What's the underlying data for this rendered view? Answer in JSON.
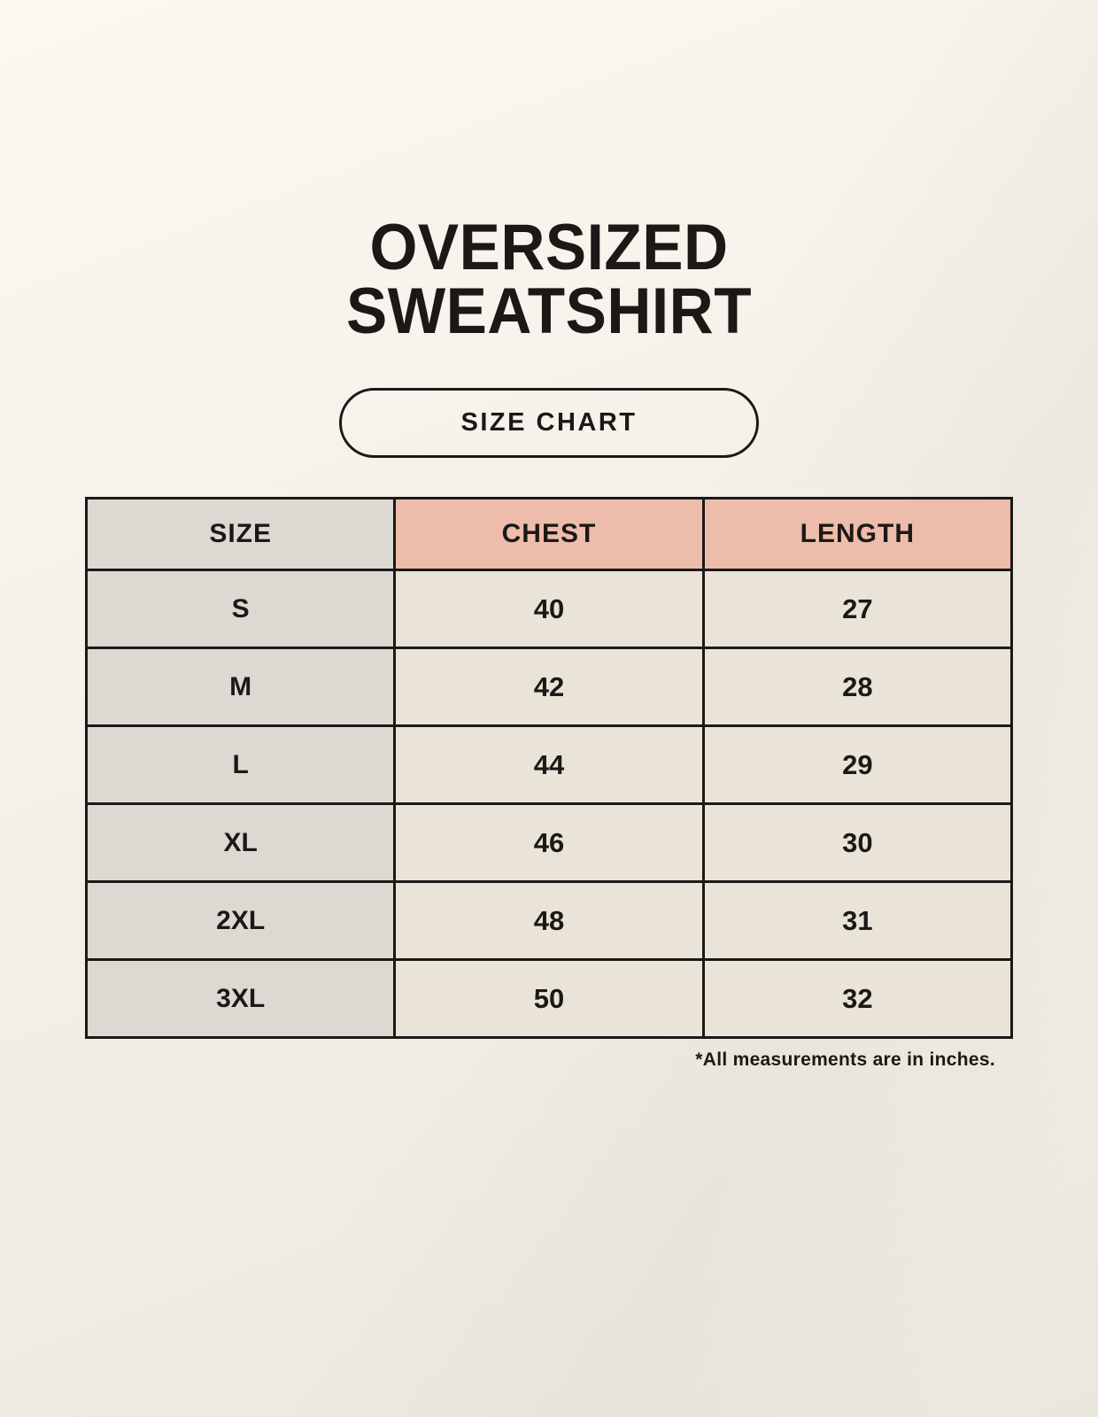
{
  "page": {
    "title_lines": [
      "OVERSIZED",
      "SWEATSHIRT"
    ]
  },
  "colors": {
    "background_top": "#faf8f1",
    "background_bottom": "#ebe7df",
    "text": "#1b1916",
    "table_border": "#1b1916",
    "size_column_bg": "#ded8d2",
    "measure_header_bg": "#edbcab",
    "data_cell_bg": "#e9e3d8"
  },
  "chart_data": {
    "type": "table",
    "title": "OVERSIZED SWEATSHIRT",
    "subtitle": "SIZE CHART",
    "columns": [
      "SIZE",
      "CHEST",
      "LENGTH"
    ],
    "rows": [
      [
        "S",
        "40",
        "27"
      ],
      [
        "M",
        "42",
        "28"
      ],
      [
        "L",
        "44",
        "29"
      ],
      [
        "XL",
        "46",
        "30"
      ],
      [
        "2XL",
        "48",
        "31"
      ],
      [
        "3XL",
        "50",
        "32"
      ]
    ],
    "units": "inches",
    "footnote": "*All measurements are in inches."
  }
}
